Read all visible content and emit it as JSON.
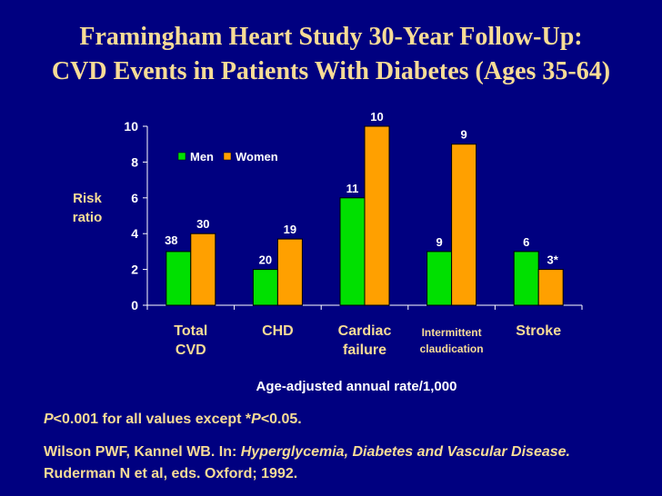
{
  "title": {
    "line1": "Framingham Heart Study 30-Year Follow-Up:",
    "line2": "CVD Events in Patients With Diabetes (Ages 35-64)"
  },
  "footnote": {
    "p_italic": "P",
    "text1": "<0.001 for all values except *",
    "p_italic2": "P",
    "text2": "<0.05."
  },
  "citation": {
    "part1": "Wilson PWF, Kannel WB. In: ",
    "italic": "Hyperglycemia, Diabetes and Vascular Disease.",
    "part2": " Ruderman N et al, eds. Oxford; 1992."
  },
  "colors": {
    "background": "#000080",
    "title_text": "#F7DC96",
    "men": "#00E000",
    "women": "#FFA000",
    "label_text": "#FFFFFF",
    "ylabel_text": "#F7DC96",
    "category_text": "#F7DC96"
  },
  "chart_data": {
    "type": "bar",
    "ylabel": [
      "Risk",
      "ratio"
    ],
    "xlabel": "Age-adjusted annual rate/1,000",
    "ylim": [
      0,
      10
    ],
    "yticks": [
      "0",
      "2",
      "4",
      "6",
      "8",
      "10"
    ],
    "grid": false,
    "legend_position": "top-left",
    "categories": [
      [
        "Total",
        "CVD"
      ],
      [
        "CHD"
      ],
      [
        "Cardiac",
        "failure"
      ],
      [
        "Intermittent",
        "claudication"
      ],
      [
        "Stroke"
      ]
    ],
    "series": [
      {
        "name": "Men",
        "values": [
          3,
          2,
          6,
          3,
          3
        ],
        "labels": [
          "38",
          "20",
          "11",
          "9",
          "6"
        ]
      },
      {
        "name": "Women",
        "values": [
          4,
          3.7,
          10,
          9,
          2
        ],
        "labels": [
          "30",
          "19",
          "10",
          "9",
          "3*"
        ]
      }
    ]
  }
}
